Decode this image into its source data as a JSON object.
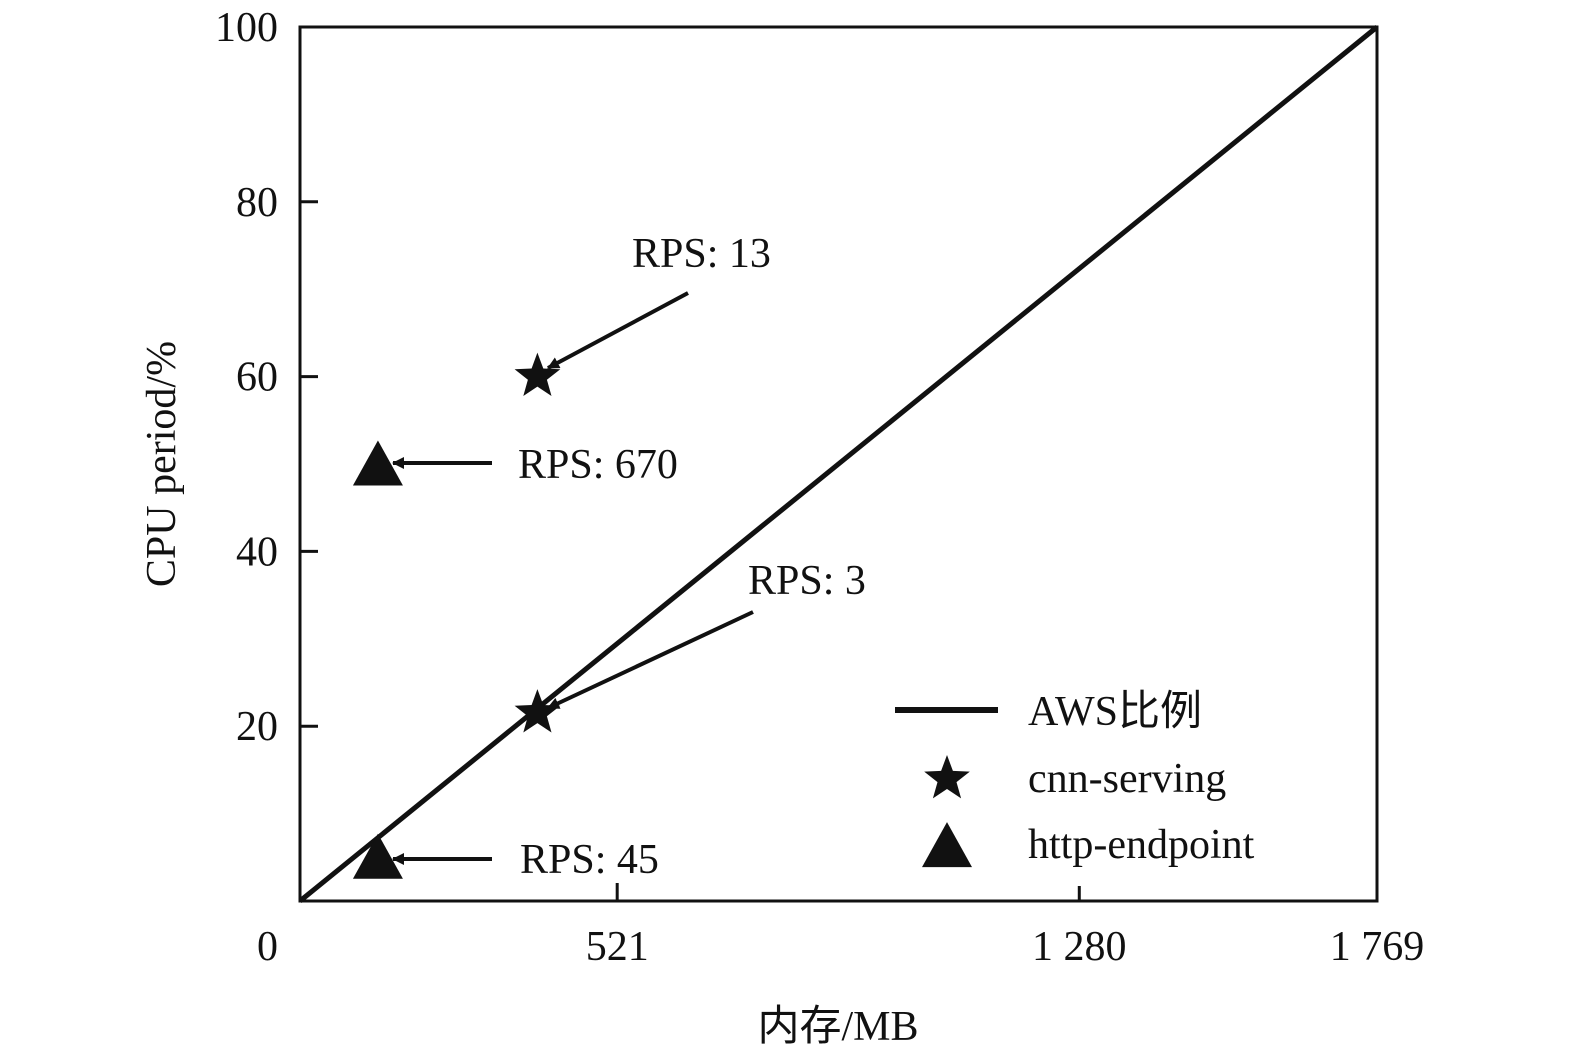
{
  "chart_data": {
    "type": "scatter",
    "xlabel": "内存/MB",
    "ylabel": "CPU period/%",
    "xlim": [
      0,
      1769
    ],
    "ylim": [
      0,
      100
    ],
    "xticks": [
      {
        "value": 0,
        "label": "0"
      },
      {
        "value": 521,
        "label": "521"
      },
      {
        "value": 1280,
        "label": "1 280"
      },
      {
        "value": 1769,
        "label": "1 769"
      }
    ],
    "yticks": [
      {
        "value": 20,
        "label": "20"
      },
      {
        "value": 40,
        "label": "40"
      },
      {
        "value": 60,
        "label": "60"
      },
      {
        "value": 80,
        "label": "80"
      },
      {
        "value": 100,
        "label": "100"
      }
    ],
    "grid": false,
    "legend_position": "bottom-right",
    "series": [
      {
        "name": "AWS比例",
        "kind": "line",
        "marker": "none",
        "color": "#111111",
        "x": [
          0,
          1769
        ],
        "y": [
          0,
          100
        ]
      },
      {
        "name": "cnn-serving",
        "kind": "scatter",
        "marker": "star",
        "color": "#111111",
        "x": [
          390,
          390
        ],
        "y": [
          60,
          21.5
        ]
      },
      {
        "name": "http-endpoint",
        "kind": "scatter",
        "marker": "triangle",
        "color": "#111111",
        "x": [
          128,
          128
        ],
        "y": [
          49.5,
          4.5
        ]
      }
    ],
    "annotations": [
      {
        "text": "RPS: 13",
        "x": 390,
        "y": 60
      },
      {
        "text": "RPS: 670",
        "x": 128,
        "y": 49.5
      },
      {
        "text": "RPS: 3",
        "x": 390,
        "y": 21.5
      },
      {
        "text": "RPS: 45",
        "x": 128,
        "y": 4.5
      }
    ]
  }
}
